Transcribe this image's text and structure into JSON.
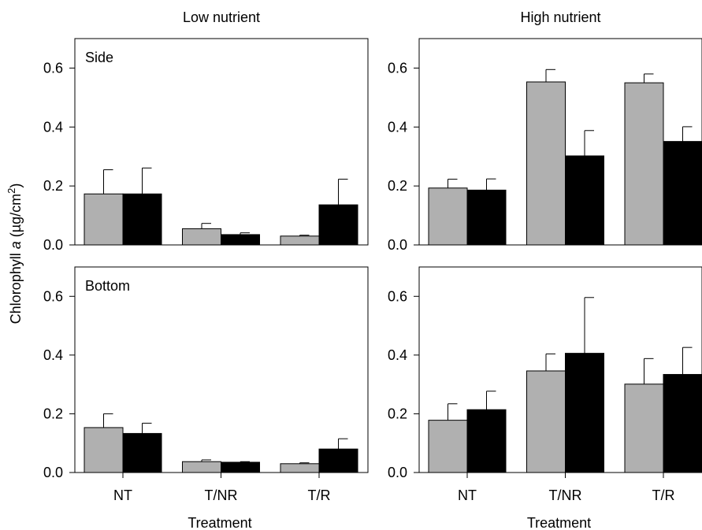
{
  "chart_data": [
    {
      "type": "bar",
      "column_title": "Low nutrient",
      "panel_label": "Side",
      "categories": [
        "NT",
        "T/NR",
        "T/R"
      ],
      "series": [
        {
          "color": "#b0b0b0",
          "values": [
            0.173,
            0.055,
            0.03
          ],
          "errors": [
            0.082,
            0.018,
            0.003
          ]
        },
        {
          "color": "#000000",
          "values": [
            0.173,
            0.035,
            0.136
          ],
          "errors": [
            0.088,
            0.006,
            0.087
          ]
        }
      ],
      "ylim": [
        0,
        0.7
      ],
      "yticks": [
        "0.0",
        "0.2",
        "0.4",
        "0.6"
      ]
    },
    {
      "type": "bar",
      "column_title": "High nutrient",
      "panel_label": "",
      "categories": [
        "NT",
        "T/NR",
        "T/R"
      ],
      "series": [
        {
          "color": "#b0b0b0",
          "values": [
            0.193,
            0.553,
            0.55
          ],
          "errors": [
            0.03,
            0.042,
            0.03
          ]
        },
        {
          "color": "#000000",
          "values": [
            0.186,
            0.302,
            0.351
          ],
          "errors": [
            0.038,
            0.086,
            0.05
          ]
        }
      ],
      "ylim": [
        0,
        0.7
      ],
      "yticks": [
        "0.0",
        "0.2",
        "0.4",
        "0.6"
      ]
    },
    {
      "type": "bar",
      "panel_label": "Bottom",
      "categories": [
        "NT",
        "T/NR",
        "T/R"
      ],
      "series": [
        {
          "color": "#b0b0b0",
          "values": [
            0.153,
            0.037,
            0.03
          ],
          "errors": [
            0.047,
            0.006,
            0.003
          ]
        },
        {
          "color": "#000000",
          "values": [
            0.133,
            0.035,
            0.08
          ],
          "errors": [
            0.035,
            0.002,
            0.035
          ]
        }
      ],
      "ylim": [
        0,
        0.7
      ],
      "yticks": [
        "0.0",
        "0.2",
        "0.4",
        "0.6"
      ],
      "xlabel": "Treatment"
    },
    {
      "type": "bar",
      "panel_label": "",
      "categories": [
        "NT",
        "T/NR",
        "T/R"
      ],
      "series": [
        {
          "color": "#b0b0b0",
          "values": [
            0.178,
            0.346,
            0.301
          ],
          "errors": [
            0.056,
            0.058,
            0.087
          ]
        },
        {
          "color": "#000000",
          "values": [
            0.214,
            0.406,
            0.334
          ],
          "errors": [
            0.063,
            0.19,
            0.092
          ]
        }
      ],
      "ylim": [
        0,
        0.7
      ],
      "yticks": [
        "0.0",
        "0.2",
        "0.4",
        "0.6"
      ],
      "xlabel": "Treatment"
    }
  ],
  "ylabel": {
    "main": "Chlorophyll ",
    "italic": "a",
    "units": " (µg/cm",
    "sup": "2",
    "close": ")"
  }
}
